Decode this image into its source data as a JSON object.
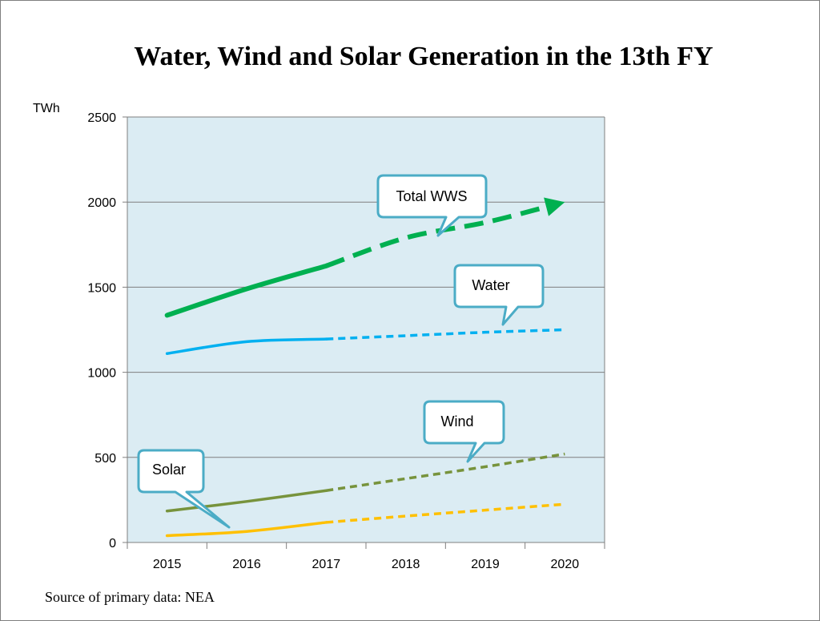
{
  "chart_data": {
    "type": "line",
    "title": "Water, Wind and Solar Generation in the 13th FY",
    "ylabel": "TWh",
    "xlabel": "",
    "categories": [
      "2015",
      "2016",
      "2017",
      "2018",
      "2019",
      "2020"
    ],
    "ylim": [
      0,
      2500
    ],
    "yticks": [
      0,
      500,
      1000,
      1500,
      2000,
      2500
    ],
    "grid": true,
    "plot_background": "#dbecf3",
    "series": [
      {
        "name": "Total WWS",
        "color": "#00b050",
        "solid": {
          "x": [
            2015,
            2016,
            2017
          ],
          "y": [
            1335,
            1490,
            1625
          ]
        },
        "dashed": {
          "x": [
            2017,
            2018,
            2019,
            2020
          ],
          "y": [
            1625,
            1790,
            1880,
            2000
          ]
        }
      },
      {
        "name": "Water",
        "color": "#00b0f0",
        "solid": {
          "x": [
            2015,
            2016,
            2017
          ],
          "y": [
            1110,
            1180,
            1195
          ]
        },
        "dashed": {
          "x": [
            2017,
            2018,
            2019,
            2020
          ],
          "y": [
            1195,
            1215,
            1235,
            1250
          ]
        }
      },
      {
        "name": "Wind",
        "color": "#77933c",
        "solid": {
          "x": [
            2015,
            2016,
            2017
          ],
          "y": [
            185,
            241,
            305
          ]
        },
        "dashed": {
          "x": [
            2017,
            2018,
            2019,
            2020
          ],
          "y": [
            305,
            375,
            445,
            520
          ]
        }
      },
      {
        "name": "Solar",
        "color": "#ffc000",
        "solid": {
          "x": [
            2015,
            2016,
            2017
          ],
          "y": [
            40,
            65,
            118
          ]
        },
        "dashed": {
          "x": [
            2017,
            2018,
            2019,
            2020
          ],
          "y": [
            118,
            155,
            190,
            225
          ]
        }
      }
    ],
    "source": "Source of primary data: NEA"
  },
  "callout_style": {
    "border": "#4bacc6",
    "fill": "#ffffff"
  }
}
